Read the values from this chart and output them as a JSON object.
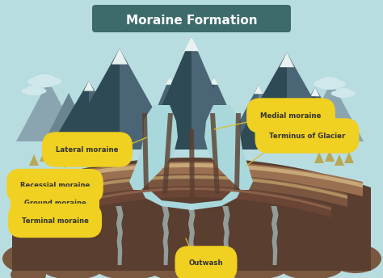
{
  "title": "Moraine Formation",
  "title_bg": "#3d6b6b",
  "title_color": "#ffffff",
  "bg_color": "#b8dde0",
  "outer_bg": "#ffffff",
  "labels": {
    "lateral_moraine": "Lateral moraine",
    "medial_moraine": "Medial moraine",
    "terminus": "Terminus of Glacier",
    "recessial": "Recessial moraine",
    "ground": "Ground moraine",
    "terminal": "Terminal moraine",
    "outwash": "Outwash"
  },
  "label_bg": "#f0d020",
  "label_color": "#333333",
  "glacier_color": "#a8d8dc",
  "glacier_mid": "#85c5cc",
  "moraine_dark": "#5a3e30",
  "moraine_mid": "#7a5540",
  "moraine_light": "#9a7050",
  "moraine_rim": "#c4956a",
  "ground_fill": "#6a4535",
  "mountain_dark": "#2e4a55",
  "mountain_mid": "#4a6575",
  "mountain_light": "#6a8590",
  "mountain_lightest": "#8aa5b0",
  "mountain_snow": "#e8f0f0",
  "outwash_brown": "#7a5840",
  "outwash_water": "#b8dde0",
  "tree_color": "#b8a855",
  "cloud_color": "#d0e8ec",
  "annotation_line": "#d8c030"
}
